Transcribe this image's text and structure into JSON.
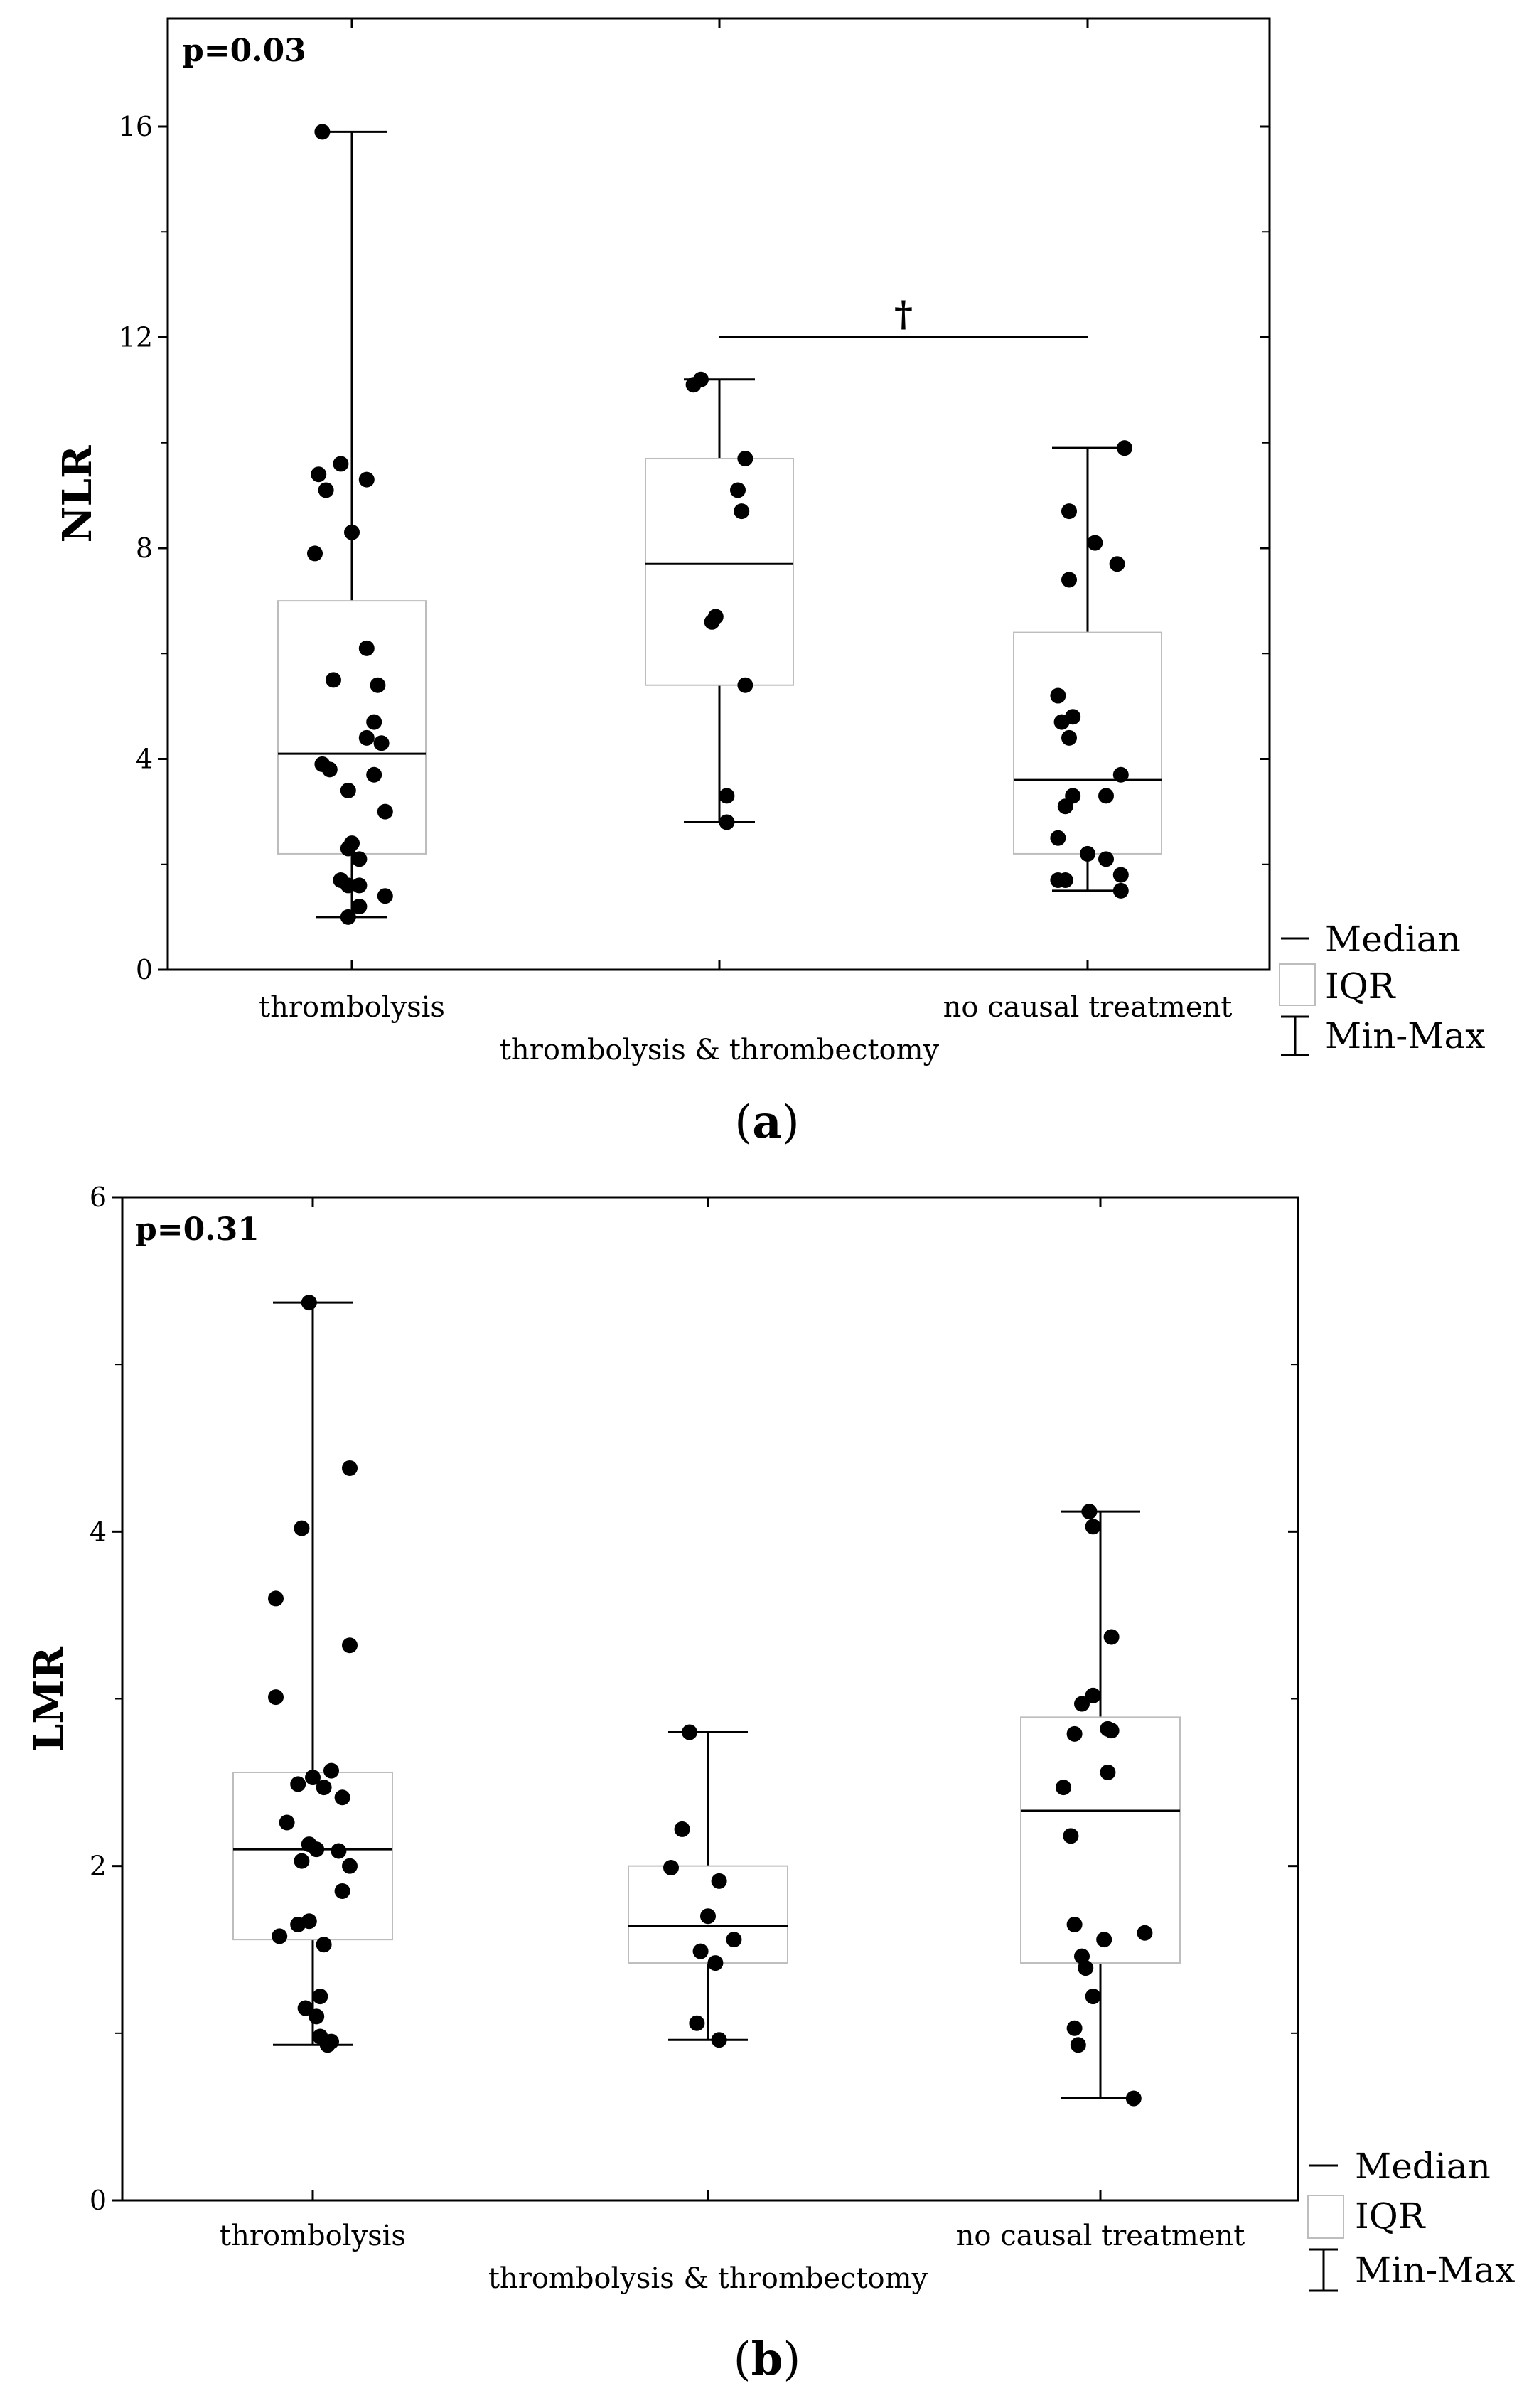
{
  "chart_data": [
    {
      "type": "box",
      "panel_label": "a",
      "annotation": "p=0.03",
      "ylabel": "NLR",
      "ylim": [
        0,
        18
      ],
      "yticks": [
        0,
        4,
        8,
        12,
        16
      ],
      "categories": [
        "thrombolysis",
        "thrombolysis & thrombectomy",
        "no causal treatment"
      ],
      "boxes": [
        {
          "min": 1.0,
          "q1": 2.2,
          "median": 4.1,
          "q3": 7.0,
          "max": 15.9
        },
        {
          "min": 2.8,
          "q1": 5.4,
          "median": 7.7,
          "q3": 9.7,
          "max": 11.2
        },
        {
          "min": 1.5,
          "q1": 2.2,
          "median": 3.6,
          "q3": 6.4,
          "max": 9.9
        }
      ],
      "points": [
        [
          [
            -0.08,
            15.9
          ],
          [
            -0.09,
            9.4
          ],
          [
            -0.03,
            9.6
          ],
          [
            0.04,
            9.3
          ],
          [
            -0.07,
            9.1
          ],
          [
            0.0,
            8.3
          ],
          [
            -0.1,
            7.9
          ],
          [
            0.04,
            6.1
          ],
          [
            -0.05,
            5.5
          ],
          [
            0.07,
            5.4
          ],
          [
            0.06,
            4.7
          ],
          [
            0.04,
            4.4
          ],
          [
            0.08,
            4.3
          ],
          [
            -0.08,
            3.9
          ],
          [
            -0.06,
            3.8
          ],
          [
            0.06,
            3.7
          ],
          [
            -0.01,
            3.4
          ],
          [
            0.09,
            3.0
          ],
          [
            0.0,
            2.4
          ],
          [
            -0.01,
            2.3
          ],
          [
            0.02,
            2.1
          ],
          [
            -0.03,
            1.7
          ],
          [
            0.02,
            1.6
          ],
          [
            -0.01,
            1.6
          ],
          [
            0.09,
            1.4
          ],
          [
            0.02,
            1.2
          ],
          [
            -0.01,
            1.0
          ]
        ],
        [
          [
            -0.07,
            11.1
          ],
          [
            -0.05,
            11.2
          ],
          [
            0.07,
            9.7
          ],
          [
            0.05,
            9.1
          ],
          [
            0.06,
            8.7
          ],
          [
            -0.02,
            6.6
          ],
          [
            -0.01,
            6.7
          ],
          [
            0.07,
            5.4
          ],
          [
            0.02,
            3.3
          ],
          [
            0.02,
            2.8
          ]
        ],
        [
          [
            0.1,
            9.9
          ],
          [
            -0.05,
            8.7
          ],
          [
            0.02,
            8.1
          ],
          [
            0.08,
            7.7
          ],
          [
            -0.05,
            7.4
          ],
          [
            -0.08,
            5.2
          ],
          [
            -0.07,
            4.7
          ],
          [
            -0.04,
            4.8
          ],
          [
            -0.05,
            4.4
          ],
          [
            0.09,
            3.7
          ],
          [
            -0.04,
            3.3
          ],
          [
            0.05,
            3.3
          ],
          [
            -0.06,
            3.1
          ],
          [
            -0.08,
            2.5
          ],
          [
            0.0,
            2.2
          ],
          [
            0.05,
            2.1
          ],
          [
            0.09,
            1.8
          ],
          [
            -0.08,
            1.7
          ],
          [
            -0.06,
            1.7
          ],
          [
            0.09,
            1.5
          ]
        ]
      ],
      "significance": {
        "from_category": 1,
        "to_category": 2,
        "y": 12,
        "symbol": "†"
      },
      "legend": {
        "median": "Median",
        "iqr": "IQR",
        "range": "Min-Max"
      }
    },
    {
      "type": "box",
      "panel_label": "b",
      "annotation": "p=0.31",
      "ylabel": "LMR",
      "ylim": [
        0,
        6
      ],
      "yticks": [
        0,
        2,
        4,
        6
      ],
      "categories": [
        "thrombolysis",
        "thrombolysis & thrombectomy",
        "no causal treatment"
      ],
      "boxes": [
        {
          "min": 0.93,
          "q1": 1.56,
          "median": 2.1,
          "q3": 2.56,
          "max": 5.37
        },
        {
          "min": 0.96,
          "q1": 1.42,
          "median": 1.64,
          "q3": 2.0,
          "max": 2.8
        },
        {
          "min": 0.61,
          "q1": 1.42,
          "median": 2.33,
          "q3": 2.89,
          "max": 4.12
        }
      ],
      "points": [
        [
          [
            -0.01,
            5.37
          ],
          [
            0.1,
            4.38
          ],
          [
            -0.03,
            4.02
          ],
          [
            -0.1,
            3.6
          ],
          [
            0.1,
            3.32
          ],
          [
            -0.1,
            3.01
          ],
          [
            0.05,
            2.57
          ],
          [
            0.0,
            2.53
          ],
          [
            -0.04,
            2.49
          ],
          [
            0.03,
            2.47
          ],
          [
            0.08,
            2.41
          ],
          [
            -0.07,
            2.26
          ],
          [
            -0.01,
            2.13
          ],
          [
            0.01,
            2.1
          ],
          [
            0.07,
            2.09
          ],
          [
            -0.03,
            2.03
          ],
          [
            0.1,
            2.0
          ],
          [
            0.08,
            1.85
          ],
          [
            -0.01,
            1.67
          ],
          [
            -0.04,
            1.65
          ],
          [
            -0.09,
            1.58
          ],
          [
            0.03,
            1.53
          ],
          [
            0.02,
            1.22
          ],
          [
            -0.02,
            1.15
          ],
          [
            0.01,
            1.1
          ],
          [
            0.02,
            0.98
          ],
          [
            0.05,
            0.95
          ],
          [
            0.04,
            0.93
          ]
        ],
        [
          [
            -0.05,
            2.8
          ],
          [
            -0.07,
            2.22
          ],
          [
            -0.1,
            1.99
          ],
          [
            0.03,
            1.91
          ],
          [
            -0.0,
            1.7
          ],
          [
            0.07,
            1.56
          ],
          [
            -0.02,
            1.49
          ],
          [
            0.02,
            1.42
          ],
          [
            -0.03,
            1.06
          ],
          [
            0.03,
            0.96
          ]
        ],
        [
          [
            -0.03,
            4.12
          ],
          [
            -0.02,
            4.03
          ],
          [
            0.03,
            3.37
          ],
          [
            -0.02,
            3.02
          ],
          [
            -0.05,
            2.97
          ],
          [
            0.02,
            2.82
          ],
          [
            0.03,
            2.81
          ],
          [
            -0.07,
            2.79
          ],
          [
            0.02,
            2.56
          ],
          [
            -0.1,
            2.47
          ],
          [
            -0.08,
            2.18
          ],
          [
            -0.07,
            1.65
          ],
          [
            0.12,
            1.6
          ],
          [
            0.01,
            1.56
          ],
          [
            -0.05,
            1.46
          ],
          [
            -0.04,
            1.39
          ],
          [
            -0.02,
            1.22
          ],
          [
            -0.07,
            1.03
          ],
          [
            -0.06,
            0.93
          ],
          [
            0.09,
            0.61
          ]
        ]
      ],
      "legend": {
        "median": "Median",
        "iqr": "IQR",
        "range": "Min-Max"
      }
    }
  ]
}
